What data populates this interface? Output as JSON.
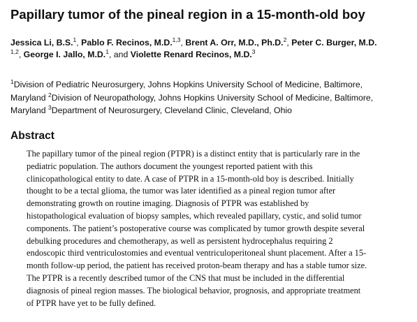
{
  "paper": {
    "title": "Papillary tumor of the pineal region in a 15-month-old boy",
    "authors_line1": [
      {
        "name": "Jessica Li, B.S.",
        "sup": "1"
      },
      {
        "name": "Pablo F. Recinos, M.D.",
        "sup": "1,3"
      },
      {
        "name": "Brent A. Orr, M.D., Ph.D.",
        "sup": "2"
      },
      {
        "name": "Peter C. Burger, M.D.",
        "sup": ""
      }
    ],
    "authors_line2": {
      "lead_sup": "1,2",
      "george": {
        "name": "George I. Jallo, M.D.",
        "sup": "1"
      },
      "and_text": ", and ",
      "violette": {
        "name": "Violette Renard Recinos, M.D.",
        "sup": "3"
      }
    },
    "affiliations": {
      "line1": {
        "sup": "1",
        "text": "Division of Pediatric Neurosurgery, Johns Hopkins University School of Medicine, Baltimore,"
      },
      "line2": {
        "pre": "Maryland ",
        "sup": "2",
        "text": "Division of Neuropathology, Johns Hopkins University School of Medicine, Baltimore,"
      },
      "line3": {
        "pre": "Maryland ",
        "sup": "3",
        "text": "Department of Neurosurgery, Cleveland Clinic, Cleveland, Ohio"
      }
    },
    "abstract_heading": "Abstract",
    "abstract_lines": [
      "The papillary tumor of the pineal region (PTPR) is a distinct entity that is particularly rare in the",
      "pediatric population. The authors document the youngest reported patient with this",
      "clinicopathological entity to date. A case of PTPR in a 15-month-old boy is described. Initially",
      "thought to be a tectal glioma, the tumor was later identified as a pineal region tumor after",
      "demonstrating growth on routine imaging. Diagnosis of PTPR was established by",
      "histopathological evaluation of biopsy samples, which revealed papillary, cystic, and solid tumor",
      "components. The patient’s postoperative course was complicated by tumor growth despite several",
      "debulking procedures and chemotherapy, as well as persistent hydrocephalus requiring 2",
      "endoscopic third ventriculostomies and eventual ventriculoperitoneal shunt placement. After a 15-",
      "month follow-up period, the patient has received proton-beam therapy and has a stable tumor size.",
      "The PTPR is a recently described tumor of the CNS that must be included in the differential",
      "diagnosis of pineal region masses. The biological behavior, prognosis, and appropriate treatment",
      "of PTPR have yet to be fully defined."
    ]
  }
}
